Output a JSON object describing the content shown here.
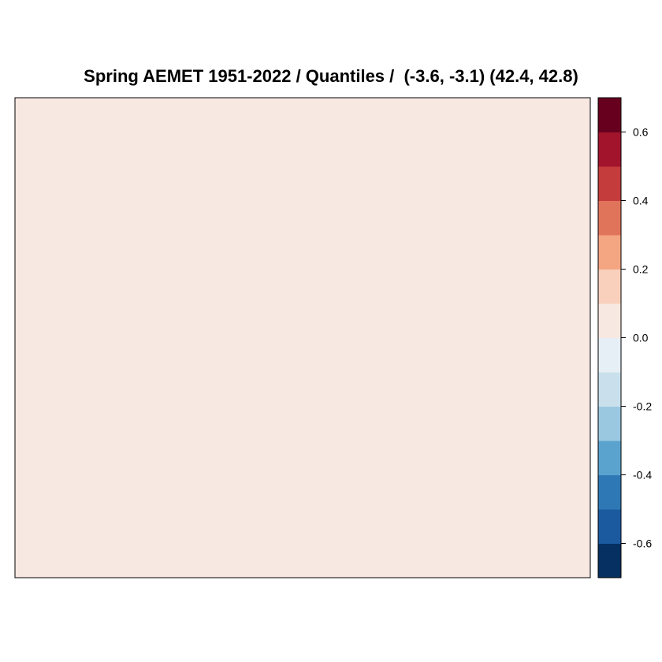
{
  "chart_data": {
    "type": "heatmap",
    "title": "Spring AEMET 1951-2022 / Quantiles /  (-3.6, -3.1) (42.4, 42.8)",
    "field_value": 0.05,
    "colorbar": {
      "range": [
        -0.7,
        0.7
      ],
      "breaks": [
        -0.7,
        -0.6,
        -0.5,
        -0.4,
        -0.3,
        -0.2,
        -0.1,
        0.0,
        0.1,
        0.2,
        0.3,
        0.4,
        0.5,
        0.6,
        0.7
      ],
      "colors": [
        "#053061",
        "#1c5a9f",
        "#2e79b5",
        "#5ba3cf",
        "#9ac8e0",
        "#c9e0ec",
        "#e6eff5",
        "#f8e8e2",
        "#f9d0bc",
        "#f4a582",
        "#e0745b",
        "#c43c3c",
        "#a2142c",
        "#67001f"
      ],
      "tick_values": [
        -0.6,
        -0.4,
        -0.2,
        0.0,
        0.2,
        0.4,
        0.6
      ],
      "tick_labels": [
        "-0.6",
        "-0.4",
        "-0.2",
        "0.0",
        "0.2",
        "0.4",
        "0.6"
      ]
    }
  }
}
